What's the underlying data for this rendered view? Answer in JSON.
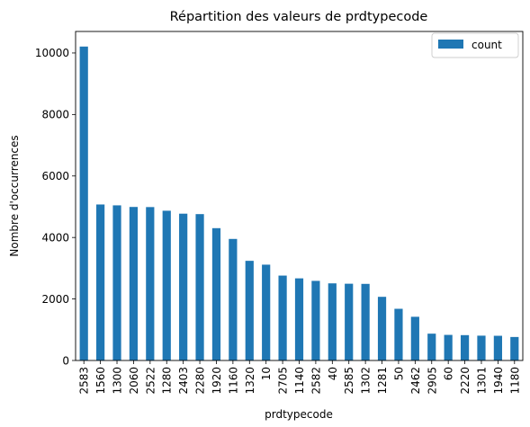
{
  "chart_data": {
    "type": "bar",
    "title": "Répartition des valeurs de prdtypecode",
    "xlabel": "prdtypecode",
    "ylabel": "Nombre d'occurrences",
    "ylim": [
      0,
      10700
    ],
    "yticks": [
      0,
      2000,
      4000,
      6000,
      8000,
      10000
    ],
    "grid": false,
    "legend_position": "top-right",
    "bar_color": "#1f77b4",
    "categories": [
      "2583",
      "1560",
      "1300",
      "2060",
      "2522",
      "1280",
      "2403",
      "2280",
      "1920",
      "1160",
      "1320",
      "10",
      "2705",
      "1140",
      "2582",
      "40",
      "2585",
      "1302",
      "1281",
      "50",
      "2462",
      "2905",
      "60",
      "2220",
      "1301",
      "1940",
      "1180"
    ],
    "series": [
      {
        "name": "count",
        "values": [
          10209,
          5073,
          5045,
          4993,
          4989,
          4870,
          4774,
          4760,
          4303,
          3953,
          3241,
          3116,
          2761,
          2671,
          2589,
          2508,
          2496,
          2491,
          2070,
          1681,
          1421,
          872,
          832,
          824,
          807,
          803,
          764
        ]
      }
    ]
  }
}
